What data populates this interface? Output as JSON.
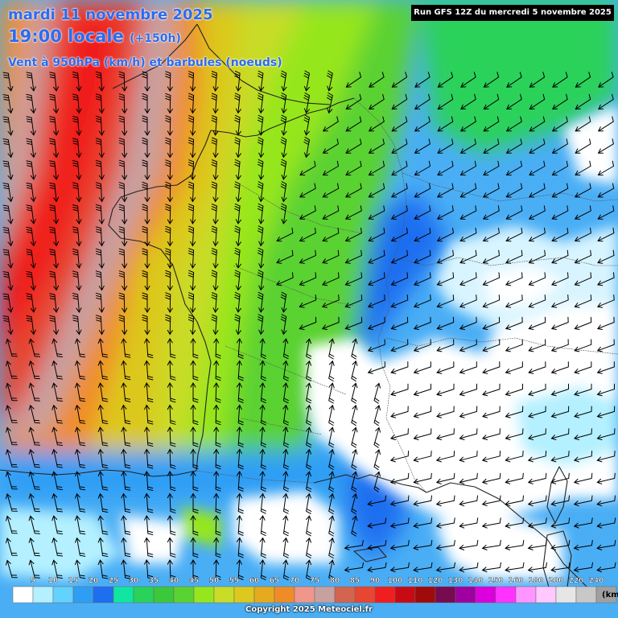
{
  "header": {
    "date_line": "mardi 11 novembre 2025",
    "time_line": "19:00 locale",
    "lead_time": "(+150h)",
    "parameter": "Vent à 950hPa (km/h) et barbules (noeuds)"
  },
  "run_info": "Run GFS 12Z du mercredi 5 novembre 2025",
  "copyright": "Copyright 2025 Meteociel.fr",
  "legend": {
    "unit": "(km",
    "labels": [
      "5",
      "10",
      "15",
      "20",
      "25",
      "30",
      "35",
      "40",
      "45",
      "50",
      "55",
      "60",
      "65",
      "70",
      "75",
      "80",
      "85",
      "90",
      "100",
      "110",
      "120",
      "130",
      "140",
      "150",
      "160",
      "180",
      "200",
      "220",
      "240"
    ],
    "colors": [
      "#ffffff",
      "#b4f0ff",
      "#64d2ff",
      "#2e9ef5",
      "#1e6ef0",
      "#10e6a0",
      "#2ad25a",
      "#3cc83c",
      "#5ad232",
      "#96e61e",
      "#c8dc28",
      "#dcc81e",
      "#e6aa1e",
      "#f08c28",
      "#f0968c",
      "#c8a0a0",
      "#d26450",
      "#e64632",
      "#f01e1e",
      "#c80a14",
      "#a00a0a",
      "#780a50",
      "#a000a0",
      "#dc00dc",
      "#ff32ff",
      "#ff96ff",
      "#ffc8ff",
      "#e6e6e6",
      "#c8c8c8",
      "#a0a0a0"
    ]
  },
  "wind_field": {
    "arrow_rows": [
      "ssssssssssssssswwwwwwwwwwww",
      "ssssssssssssssswwwwwwwwwwww",
      "sssssssssssssswwwwwwwwwwwww",
      "sssssssssssssswwwwwwwwwwwww",
      "ssssssssssssswwwwwwwwwwwwww",
      "ssssssssssssswwwwwwwwwwwwww",
      "ssssssssssssswwwwwwwwwwwwww",
      "sssssssssssswwwwwwwwwwwwwww",
      "sssssssssssswwwwwwwwwwwwwww",
      "sssssssssssswwwwwwwwwwwwwww",
      "ssssssssssssswwwwwwwwwwwwww",
      "ssssssssssssswwwwwwwwwwwwww",
      "nnnnnnnnnnnnnnnnwwwwwwwwwww",
      "nnnnnnnnnnnnnnnnwwwwwwwwwww",
      "nnnnnnnnnnnnnnnnnwwwwwwwwww",
      "nnnnnnnnnnnnnnnnnwwwwwwwwww",
      "nnnnnnnnnnnnnnnnnwwwwwwwwww",
      "nnnnnnnnnnnnnnnnnwwwwwwwwww",
      "nnnnnnnnnnnnnnnnnwwwwwwwwww",
      "nnnnnnnnnnnnnnnnwwwwwwwwwww",
      "nnnnnnnnnnnnnnnnwwwwwwwwwww",
      "nnnnnnnnnnnnnnnwwwwwwwwwwww",
      "nnnnnnnnnnnnnnnwwwwwwwwwwww",
      "nnnnnnnnnnnnnnwwwwwwwwwwwww",
      "nnnnnnnnnnnnnwwwwwwwwwwwwww",
      "nnnnnnnnnnnnwwwwwwwwwwwwwww"
    ]
  }
}
